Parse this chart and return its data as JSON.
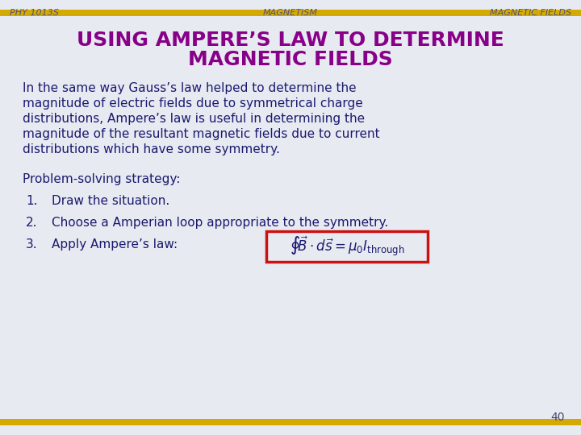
{
  "background_color": "#e8eaf2",
  "top_bar_color": "#d4aa00",
  "bottom_bar_color": "#d4aa00",
  "header_left": "PHY 1013S",
  "header_center": "MAGNETISM",
  "header_right": "MAGNETIC FIELDS",
  "header_color": "#555577",
  "header_fontsize": 8,
  "title_line1": "USING AMPERE’S LAW TO DETERMINE",
  "title_line2": "MAGNETIC FIELDS",
  "title_color": "#880088",
  "title_fontsize": 18,
  "body_color": "#1a1a6e",
  "body_fontsize": 11,
  "paragraph_line1": "In the same way Gauss’s law helped to determine the",
  "paragraph_line2": "magnitude of electric fields due to symmetrical charge",
  "paragraph_line3": "distributions, Ampere’s law is useful in determining the",
  "paragraph_line4": "magnitude of the resultant magnetic fields due to current",
  "paragraph_line5": "distributions which have some symmetry.",
  "strategy_label": "Problem-solving strategy:",
  "item1_num": "1.",
  "item1_text": "Draw the situation.",
  "item2_num": "2.",
  "item2_text": "Choose a Amperian loop appropriate to the symmetry.",
  "item3_num": "3.",
  "item3_text": "Apply Ampere’s law:",
  "formula": "$\\oint\\!\\vec{B}\\cdot d\\vec{s} = \\mu_0 I_{\\mathrm{through}}$",
  "formula_box_color": "#cc1111",
  "formula_face_color": "#e8eaf2",
  "page_number": "40",
  "page_number_color": "#444466"
}
